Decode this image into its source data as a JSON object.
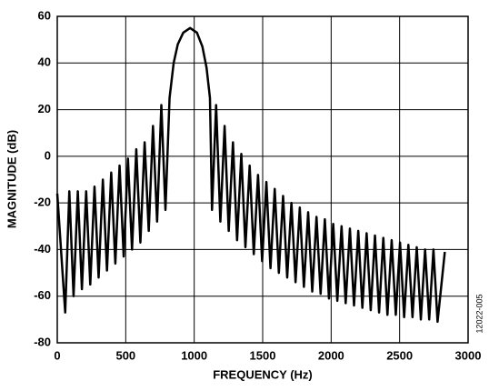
{
  "chart_data": {
    "type": "line",
    "xlabel": "FREQUENCY (Hz)",
    "ylabel": "MAGNITUDE (dB)",
    "annotation": "12022-005",
    "xlim": [
      0,
      3000
    ],
    "xticks": [
      0,
      500,
      1000,
      1500,
      2000,
      2500,
      3000
    ],
    "ylim": [
      -80,
      60
    ],
    "yticks": [
      -80,
      -60,
      -40,
      -20,
      0,
      20,
      40,
      60
    ],
    "grid": true,
    "series": [
      {
        "color": "#000000",
        "x": [
          0,
          58,
          88,
          119,
          150,
          180,
          211,
          241,
          272,
          302,
          333,
          363,
          394,
          424,
          455,
          485,
          516,
          546,
          577,
          607,
          638,
          668,
          699,
          729,
          760,
          790,
          820,
          850,
          880,
          920,
          970,
          1020,
          1060,
          1090,
          1115,
          1130,
          1160,
          1191,
          1222,
          1252,
          1283,
          1313,
          1344,
          1374,
          1405,
          1435,
          1466,
          1496,
          1527,
          1557,
          1588,
          1618,
          1649,
          1679,
          1710,
          1740,
          1771,
          1801,
          1832,
          1862,
          1893,
          1923,
          1954,
          1984,
          2015,
          2045,
          2076,
          2106,
          2137,
          2167,
          2198,
          2228,
          2259,
          2289,
          2320,
          2350,
          2381,
          2411,
          2442,
          2472,
          2503,
          2533,
          2564,
          2594,
          2625,
          2655,
          2686,
          2716,
          2747,
          2777,
          2830
        ],
        "values": [
          -16,
          -67,
          -15,
          -60,
          -15,
          -57,
          -15,
          -55,
          -13,
          -52,
          -10,
          -49,
          -7,
          -46,
          -4,
          -43,
          -1,
          -40,
          3,
          -37,
          6,
          -32,
          13,
          -28,
          22,
          -23,
          25,
          40,
          48,
          53,
          55,
          53,
          47,
          38,
          25,
          -23,
          22,
          -28,
          13,
          -32,
          6,
          -36,
          1,
          -39,
          -4,
          -42,
          -8,
          -45,
          -11,
          -48,
          -14,
          -50,
          -17,
          -52,
          -20,
          -54,
          -22,
          -56,
          -24,
          -58,
          -26,
          -59,
          -27,
          -61,
          -29,
          -62,
          -30,
          -63,
          -31,
          -64,
          -32,
          -65,
          -33,
          -66,
          -34,
          -67,
          -35,
          -68,
          -36,
          -68,
          -37,
          -69,
          -38,
          -69,
          -39,
          -70,
          -40,
          -70,
          -40,
          -71,
          -41
        ]
      }
    ]
  }
}
